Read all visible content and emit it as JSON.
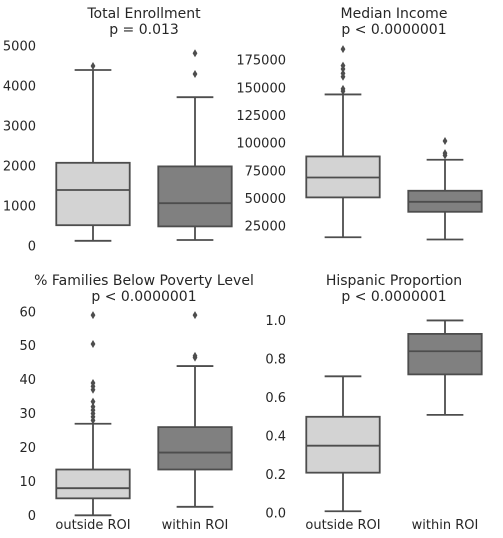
{
  "chart_data": [
    {
      "type": "box",
      "title": "Total Enrollment",
      "subtitle": "p = 0.013",
      "categories": [
        "outside ROI",
        "within ROI"
      ],
      "show_xticklabels": false,
      "ylim": [
        -100,
        5200
      ],
      "yticks": [
        0,
        1000,
        2000,
        3000,
        4000,
        5000
      ],
      "yticklabels": [
        "0",
        "1000",
        "2000",
        "3000",
        "4000",
        "5000"
      ],
      "grid": false,
      "series": [
        {
          "category": "outside ROI",
          "color": "#d3d3d3",
          "whisker_low": 130,
          "q1": 520,
          "median": 1400,
          "q3": 2080,
          "whisker_high": 4400,
          "outliers": [
            4500
          ]
        },
        {
          "category": "within ROI",
          "color": "#808080",
          "whisker_low": 150,
          "q1": 490,
          "median": 1070,
          "q3": 1990,
          "whisker_high": 3720,
          "outliers": [
            4300,
            4820
          ]
        }
      ]
    },
    {
      "type": "box",
      "title": "Median Income",
      "subtitle": "p < 0.0000001",
      "categories": [
        "outside ROI",
        "within ROI"
      ],
      "show_xticklabels": false,
      "ylim": [
        8000,
        195000
      ],
      "yticks": [
        25000,
        50000,
        75000,
        100000,
        125000,
        150000,
        175000
      ],
      "yticklabels": [
        "25000",
        "50000",
        "75000",
        "100000",
        "125000",
        "150000",
        "175000"
      ],
      "grid": false,
      "series": [
        {
          "category": "outside ROI",
          "color": "#d3d3d3",
          "whisker_low": 15000,
          "q1": 51000,
          "median": 69000,
          "q3": 88000,
          "whisker_high": 144000,
          "outliers": [
            147000,
            149000,
            160000,
            163000,
            167000,
            170000,
            185000
          ]
        },
        {
          "category": "within ROI",
          "color": "#808080",
          "whisker_low": 13000,
          "q1": 38000,
          "median": 47000,
          "q3": 57000,
          "whisker_high": 85000,
          "outliers": [
            89000,
            91000,
            102000
          ]
        }
      ]
    },
    {
      "type": "box",
      "title": "% Families Below Poverty Level",
      "subtitle": "p < 0.0000001",
      "categories": [
        "outside ROI",
        "within ROI"
      ],
      "show_xticklabels": true,
      "ylim": [
        -0.5,
        62
      ],
      "yticks": [
        0,
        10,
        20,
        30,
        40,
        50,
        60
      ],
      "yticklabels": [
        "0",
        "10",
        "20",
        "30",
        "40",
        "50",
        "60"
      ],
      "grid": false,
      "series": [
        {
          "category": "outside ROI",
          "color": "#d3d3d3",
          "whisker_low": 0,
          "q1": 5,
          "median": 8,
          "q3": 13.5,
          "whisker_high": 27,
          "outliers": [
            28,
            29,
            30,
            31,
            32,
            33.5,
            37,
            38,
            39,
            50.5,
            59
          ]
        },
        {
          "category": "within ROI",
          "color": "#808080",
          "whisker_low": 2.5,
          "q1": 13.5,
          "median": 18.5,
          "q3": 26,
          "whisker_high": 44,
          "outliers": [
            46.5,
            47,
            59
          ]
        }
      ]
    },
    {
      "type": "box",
      "title": "Hispanic Proportion",
      "subtitle": "p < 0.0000001",
      "categories": [
        "outside ROI",
        "within ROI"
      ],
      "show_xticklabels": true,
      "ylim": [
        -0.02,
        1.08
      ],
      "yticks": [
        0.0,
        0.2,
        0.4,
        0.6,
        0.8,
        1.0
      ],
      "yticklabels": [
        "0.0",
        "0.2",
        "0.4",
        "0.6",
        "0.8",
        "1.0"
      ],
      "grid": false,
      "series": [
        {
          "category": "outside ROI",
          "color": "#d3d3d3",
          "whisker_low": 0.01,
          "q1": 0.21,
          "median": 0.35,
          "q3": 0.5,
          "whisker_high": 0.71,
          "outliers": []
        },
        {
          "category": "within ROI",
          "color": "#808080",
          "whisker_low": 0.51,
          "q1": 0.72,
          "median": 0.84,
          "q3": 0.93,
          "whisker_high": 1.0,
          "outliers": []
        }
      ]
    }
  ]
}
